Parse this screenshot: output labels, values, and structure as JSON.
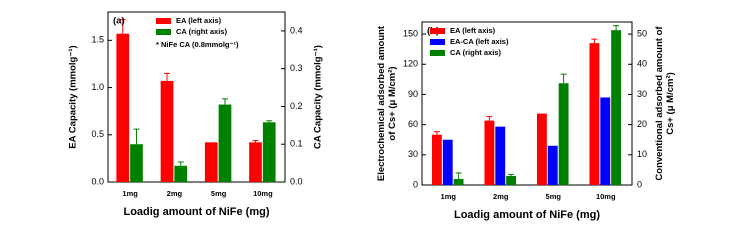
{
  "chart_data": [
    {
      "type": "bar",
      "panel_label": "(a)",
      "annotation": "* NiFe CA (0.8mmolg⁻¹)",
      "xlabel": "Loadig amount of NiFe (mg)",
      "ylabel": [
        "EA Capacity (mmolg⁻¹)"
      ],
      "y2label": [
        "CA Capacity (mmolg⁻¹)"
      ],
      "categories": [
        "1mg",
        "2mg",
        "5mg",
        "10mg"
      ],
      "series": [
        {
          "name": "EA (left axis)",
          "color": "#ff0000",
          "axis": "y",
          "values": [
            1.57,
            1.07,
            0.42,
            0.42
          ],
          "errors": [
            0.15,
            0.08,
            null,
            0.02
          ]
        },
        {
          "name": "CA (right axis)",
          "color": "#008000",
          "axis": "y2",
          "values": [
            0.1,
            0.043,
            0.205,
            0.158
          ],
          "errors": [
            0.04,
            0.01,
            0.015,
            0.004
          ]
        }
      ],
      "ylim": [
        0,
        1.8
      ],
      "yticks": [
        {
          "value": 0,
          "label": "0.0"
        },
        0.5,
        {
          "value": 1,
          "label": "1.0"
        },
        1.5
      ],
      "y2lim": [
        0,
        0.45
      ],
      "y2ticks": [
        {
          "value": 0,
          "label": "0.0"
        },
        0.1,
        0.2,
        0.3,
        0.4
      ],
      "legend": "upper center"
    },
    {
      "type": "bar",
      "panel_label": "(b)",
      "xlabel": "Loadig amount of NiFe (mg)",
      "ylabel": [
        "Electrochemical adsorbed amount",
        "of Cs+ (μ M/cm²)"
      ],
      "y2label": [
        "Conventional adsorbed amount of",
        "Cs+ (μ M/cm²)"
      ],
      "categories": [
        "1mg",
        "2mg",
        "5mg",
        "10mg"
      ],
      "series": [
        {
          "name": "EA (left axis)",
          "color": "#ff0000",
          "axis": "y",
          "values": [
            50,
            64,
            71,
            141
          ],
          "errors": [
            3,
            4,
            null,
            4
          ]
        },
        {
          "name": "EA-CA (left axis)",
          "color": "#0000ff",
          "axis": "y",
          "values": [
            45,
            58,
            39,
            87
          ],
          "errors": [
            null,
            null,
            null,
            null
          ]
        },
        {
          "name": "CA (right axis)",
          "color": "#008000",
          "axis": "y2",
          "values": [
            2,
            3,
            33.7,
            51.3
          ],
          "errors": [
            2,
            0.5,
            3,
            1.5
          ]
        }
      ],
      "ylim": [
        0,
        162
      ],
      "yticks": [
        0,
        30,
        60,
        90,
        120,
        150
      ],
      "y2lim": [
        0,
        54
      ],
      "y2ticks": [
        0,
        10,
        20,
        30,
        40,
        50
      ],
      "legend": "upper left"
    }
  ]
}
